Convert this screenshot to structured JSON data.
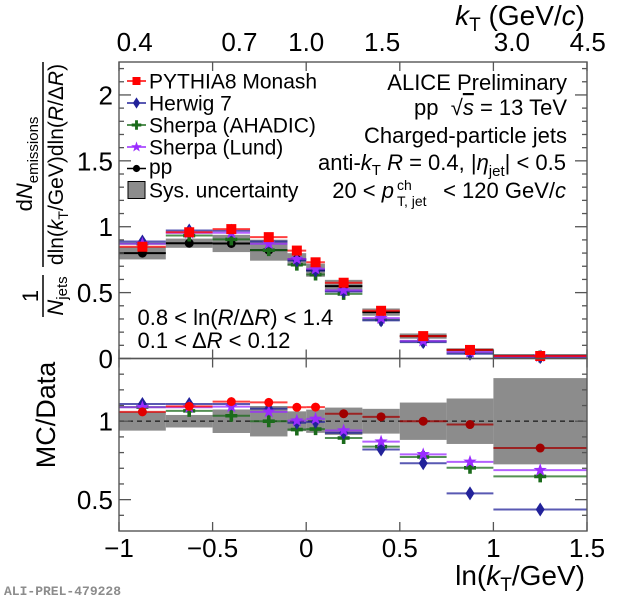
{
  "figure": {
    "preliminary_id": "ALI-PREL-479228"
  },
  "chart_data": {
    "type": "scatter",
    "title": "",
    "xlabel_parts": [
      "ln(",
      "k",
      "T",
      "/GeV)"
    ],
    "x2label_parts": [
      "k",
      "T",
      " (GeV/",
      "c",
      ")"
    ],
    "xlim": [
      -1,
      1.5
    ],
    "x_ticks": [
      -1,
      -0.5,
      0,
      0.5,
      1,
      1.5
    ],
    "x_tick_labels": [
      "−1",
      "−0.5",
      "0",
      "0.5",
      "1",
      "1.5"
    ],
    "x2_tick_values_kT": [
      0.4,
      0.7,
      1.0,
      1.5,
      3.0,
      4.5
    ],
    "x2_tick_labels": [
      "0.4",
      "0.7",
      "1.0",
      "1.5",
      "3.0",
      "4.5"
    ],
    "bin_edges": [
      -1,
      -0.75,
      -0.5,
      -0.3,
      -0.1,
      0,
      0.1,
      0.3,
      0.5,
      0.75,
      1.0,
      1.5
    ],
    "grid": false,
    "legend_position": "top-left",
    "legend": [
      {
        "label": "PYTHIA8 Monash",
        "series": "pythia"
      },
      {
        "label": "Herwig 7",
        "series": "herwig"
      },
      {
        "label": "Sherpa (AHADIC)",
        "series": "sherpa_ahadic"
      },
      {
        "label": "Sherpa (Lund)",
        "series": "sherpa_lund"
      },
      {
        "label": "pp",
        "series": "pp"
      },
      {
        "label": "Sys. uncertainty",
        "series": "sys"
      }
    ],
    "upper_panel": {
      "ylabel": {
        "norm_parts": [
          "1",
          "N",
          "jets"
        ],
        "numerator_parts": [
          "d",
          "N",
          "emissions"
        ],
        "denominator_parts": [
          "dln(",
          "k",
          "T",
          "/GeV)dln(",
          "R",
          "/Δ",
          "R",
          ")"
        ]
      },
      "ylim": [
        0,
        2.25
      ],
      "y_ticks": [
        0,
        0.5,
        1,
        1.5,
        2
      ],
      "y_tick_labels": [
        "0",
        "0.5",
        "1",
        "1.5",
        "2"
      ],
      "y_minor_tick_step": 0.1,
      "data": {
        "id": "pp",
        "name": "pp",
        "marker": "circle",
        "color": "#000000",
        "values": [
          0.8,
          0.875,
          0.873,
          0.822,
          0.752,
          0.67,
          0.549,
          0.352,
          0.17,
          0.066,
          0.023
        ],
        "sys_uncertainty_rel": [
          0.06,
          0.04,
          0.075,
          0.097,
          0.063,
          0.074,
          0.087,
          0.079,
          0.119,
          0.145,
          0.275
        ],
        "sys_color": "#8c8c8c"
      },
      "series": [
        {
          "id": "pythia",
          "name": "PYTHIA8 Monash",
          "marker": "square",
          "color": "#ff0000",
          "values": [
            0.848,
            0.958,
            0.982,
            0.921,
            0.819,
            0.73,
            0.575,
            0.362,
            0.17,
            0.065,
            0.019
          ]
        },
        {
          "id": "herwig",
          "name": "Herwig 7",
          "marker": "diamond",
          "color": "#22229a",
          "values": [
            0.888,
            0.971,
            0.969,
            0.888,
            0.744,
            0.667,
            0.508,
            0.289,
            0.124,
            0.036,
            0.01
          ]
        },
        {
          "id": "sherpa_ahadic",
          "name": "Sherpa (AHADIC)",
          "marker": "cross",
          "color": "#1b6b1b",
          "values": [
            0.872,
            0.933,
            0.904,
            0.822,
            0.712,
            0.637,
            0.49,
            0.295,
            0.131,
            0.046,
            0.015
          ]
        },
        {
          "id": "sherpa_lund",
          "name": "Sherpa (Lund)",
          "marker": "star",
          "color": "#9a2bff",
          "values": [
            0.871,
            0.953,
            0.954,
            0.871,
            0.755,
            0.68,
            0.517,
            0.306,
            0.134,
            0.049,
            0.016
          ]
        }
      ]
    },
    "ratio_panel": {
      "ylabel": "MC/Data",
      "ylim": [
        0.3,
        1.4
      ],
      "y_ticks": [
        0.5,
        1
      ],
      "y_tick_labels": [
        "0.5",
        "1"
      ],
      "y_minor_tick_step": 0.1,
      "reference_line": 1,
      "series": [
        {
          "id": "pythia",
          "name": "PYTHIA8 Monash",
          "marker": "circle",
          "color": "#ff0000",
          "point_colors": [
            "#e00000",
            "#ff0000",
            "#ff0000",
            "#ff0000",
            "#ff0000",
            "#ff0000",
            "#a00000",
            "#a00000",
            "#a00000",
            "#a00000",
            "#a00000"
          ],
          "values": [
            1.06,
            1.095,
            1.125,
            1.12,
            1.089,
            1.09,
            1.048,
            1.028,
            1.0,
            0.979,
            0.829
          ]
        },
        {
          "id": "herwig",
          "name": "Herwig 7",
          "marker": "diamond",
          "color": "#22229a",
          "values": [
            1.11,
            1.11,
            1.11,
            1.08,
            0.99,
            0.996,
            0.926,
            0.82,
            0.732,
            0.54,
            0.437
          ]
        },
        {
          "id": "sherpa_ahadic",
          "name": "Sherpa (AHADIC)",
          "marker": "cross",
          "color": "#1b6b1b",
          "values": [
            1.09,
            1.066,
            1.035,
            1.0,
            0.947,
            0.95,
            0.893,
            0.838,
            0.772,
            0.703,
            0.648
          ]
        },
        {
          "id": "sherpa_lund",
          "name": "Sherpa (Lund)",
          "marker": "star",
          "color": "#9a2bff",
          "values": [
            1.089,
            1.089,
            1.093,
            1.06,
            1.004,
            1.015,
            0.941,
            0.87,
            0.789,
            0.741,
            0.688
          ]
        }
      ]
    },
    "annotations": {
      "experiment": "ALICE Preliminary",
      "collision_parts": [
        "pp  ",
        "√",
        "s",
        " = 13 TeV"
      ],
      "jets": "Charged-particle jets",
      "jet_def_parts": [
        "anti-",
        "k",
        "T",
        " ",
        "R",
        " = 0.4, |",
        "η",
        "jet",
        "| < 0.5"
      ],
      "pt_parts": [
        "20 < ",
        "p",
        "ch",
        "T, jet",
        " < 120 GeV/",
        "c"
      ],
      "cut_lnr_parts": [
        "0.8 < ln(",
        "R",
        "/Δ",
        "R",
        ") < 1.4"
      ],
      "cut_dr_parts": [
        "0.1 < Δ",
        "R",
        " < 0.12"
      ]
    }
  }
}
